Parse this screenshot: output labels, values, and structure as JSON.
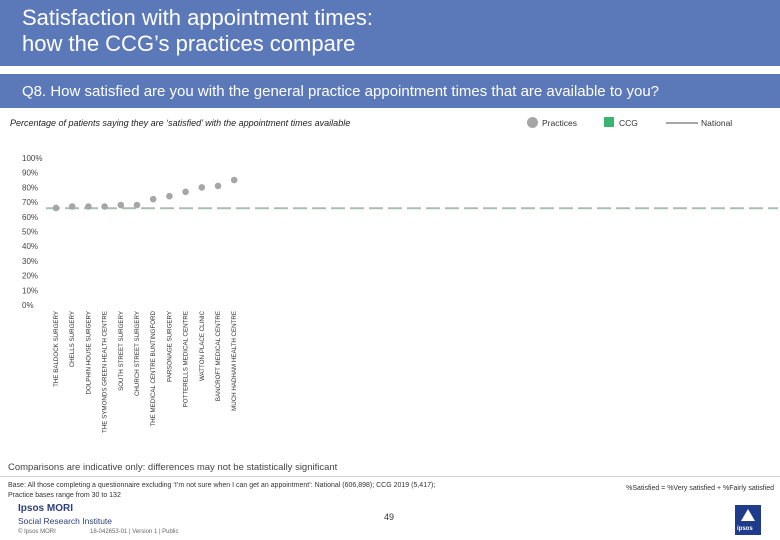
{
  "header": {
    "title": "Satisfaction with appointment times:\nhow the CCG’s practices compare",
    "question": "Q8. How satisfied are you with the general practice appointment times that are available to you?"
  },
  "legend": {
    "practices": "Practices",
    "ccg": "CCG",
    "national": "National"
  },
  "chart_data": {
    "type": "bar",
    "title": "Percentage of patients saying they are ‘satisfied’ with the appointment times available",
    "ylim": [
      0,
      100
    ],
    "yticks": [
      "0%",
      "10%",
      "20%",
      "30%",
      "40%",
      "50%",
      "60%",
      "70%",
      "80%",
      "90%",
      "100%"
    ],
    "categories": [
      "THE BALDOCK SURGERY",
      "CHELLS SURGERY",
      "DOLPHIN HOUSE SURGERY",
      "THE SYMONDS GREEN HEALTH CENTRE",
      "SOUTH STREET SURGERY",
      "CHURCH STREET SURGERY",
      "THE MEDICAL CENTRE BUNTINGFORD",
      "PARSONAGE SURGERY",
      "POTTERELLS MEDICAL CENTRE",
      "WATTON PLACE CLINIC",
      "BANCROFT MEDICAL CENTRE",
      "MUCH HADHAM HEALTH CENTRE"
    ],
    "practice_values": [
      66,
      67,
      67,
      67,
      68,
      68,
      72,
      74,
      77,
      80,
      81,
      85
    ],
    "ccg_value": 66,
    "national_value": 66,
    "series_colors": {
      "practices": "#a6a6a6",
      "ccg": "#3cb371",
      "national": "#a6a6a6"
    },
    "grid": false
  },
  "footer": {
    "comparisons": "Comparisons are indicative only: differences may not be statistically significant",
    "base": "Base: All those completing a questionnaire excluding ‘I’m not sure when I can get an appointment’: National (606,898); CCG 2019 (5,417);\nPractice bases range from 30 to 132",
    "satisfied_def": "%Satisfied = %Very satisfied + %Fairly satisfied",
    "logo_line1": "Ipsos MORI",
    "logo_line2": "Social Research Institute",
    "copyright": "© Ipsos MORI",
    "version": "18-042653-01 | Version 1 | Public",
    "page_number": "49",
    "badge_text": "ipsos"
  }
}
